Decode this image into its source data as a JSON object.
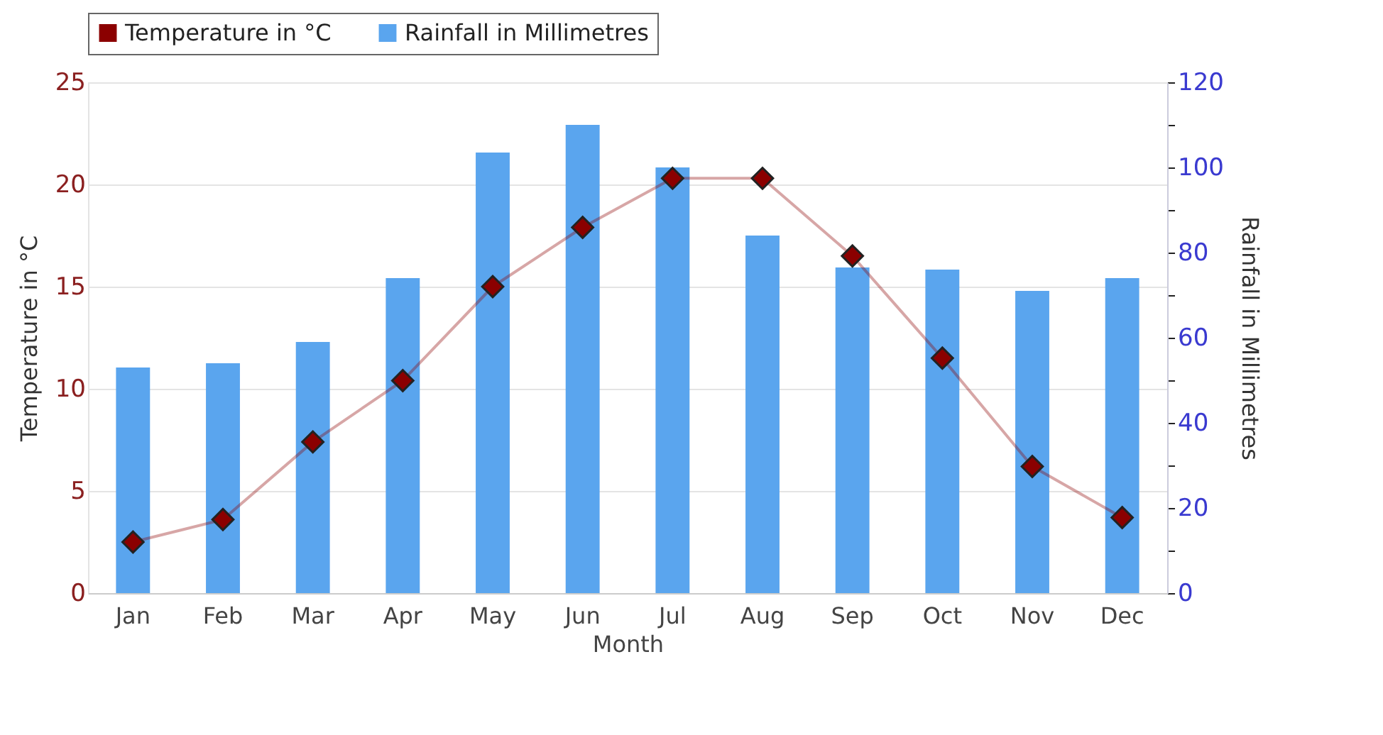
{
  "chart_data": {
    "type": "bar",
    "xlabel": "Month",
    "ylabel": "Temperature in °C",
    "y2label": "Rainfall in Millimetres",
    "categories": [
      "Jan",
      "Feb",
      "Mar",
      "Apr",
      "May",
      "Jun",
      "Jul",
      "Aug",
      "Sep",
      "Oct",
      "Nov",
      "Dec"
    ],
    "series": [
      {
        "name": "Temperature in °C",
        "type": "line",
        "color": "#8b0000",
        "marker": "diamond",
        "values": [
          2.5,
          3.6,
          7.4,
          10.4,
          15.0,
          17.9,
          20.3,
          20.3,
          16.5,
          11.5,
          6.2,
          3.7
        ]
      },
      {
        "name": "Rainfall in Millimetres",
        "type": "bar",
        "axis": "y2",
        "color": "#5aa5ee",
        "values": [
          53,
          54,
          59,
          74,
          103.5,
          110,
          100,
          84,
          76.5,
          76,
          71,
          74
        ]
      }
    ],
    "ylim": [
      0,
      25
    ],
    "yticks": [
      0,
      5,
      10,
      15,
      20,
      25
    ],
    "y2lim": [
      0,
      120
    ],
    "y2ticks": [
      0,
      {
        "value": 10,
        "label": null
      },
      20,
      {
        "value": 30,
        "label": null
      },
      40,
      {
        "value": 50,
        "label": null
      },
      60,
      {
        "value": 70,
        "label": null
      },
      80,
      {
        "value": 90,
        "label": null
      },
      100,
      {
        "value": 110,
        "label": null
      },
      120
    ],
    "grid": "y",
    "legend": "top"
  }
}
